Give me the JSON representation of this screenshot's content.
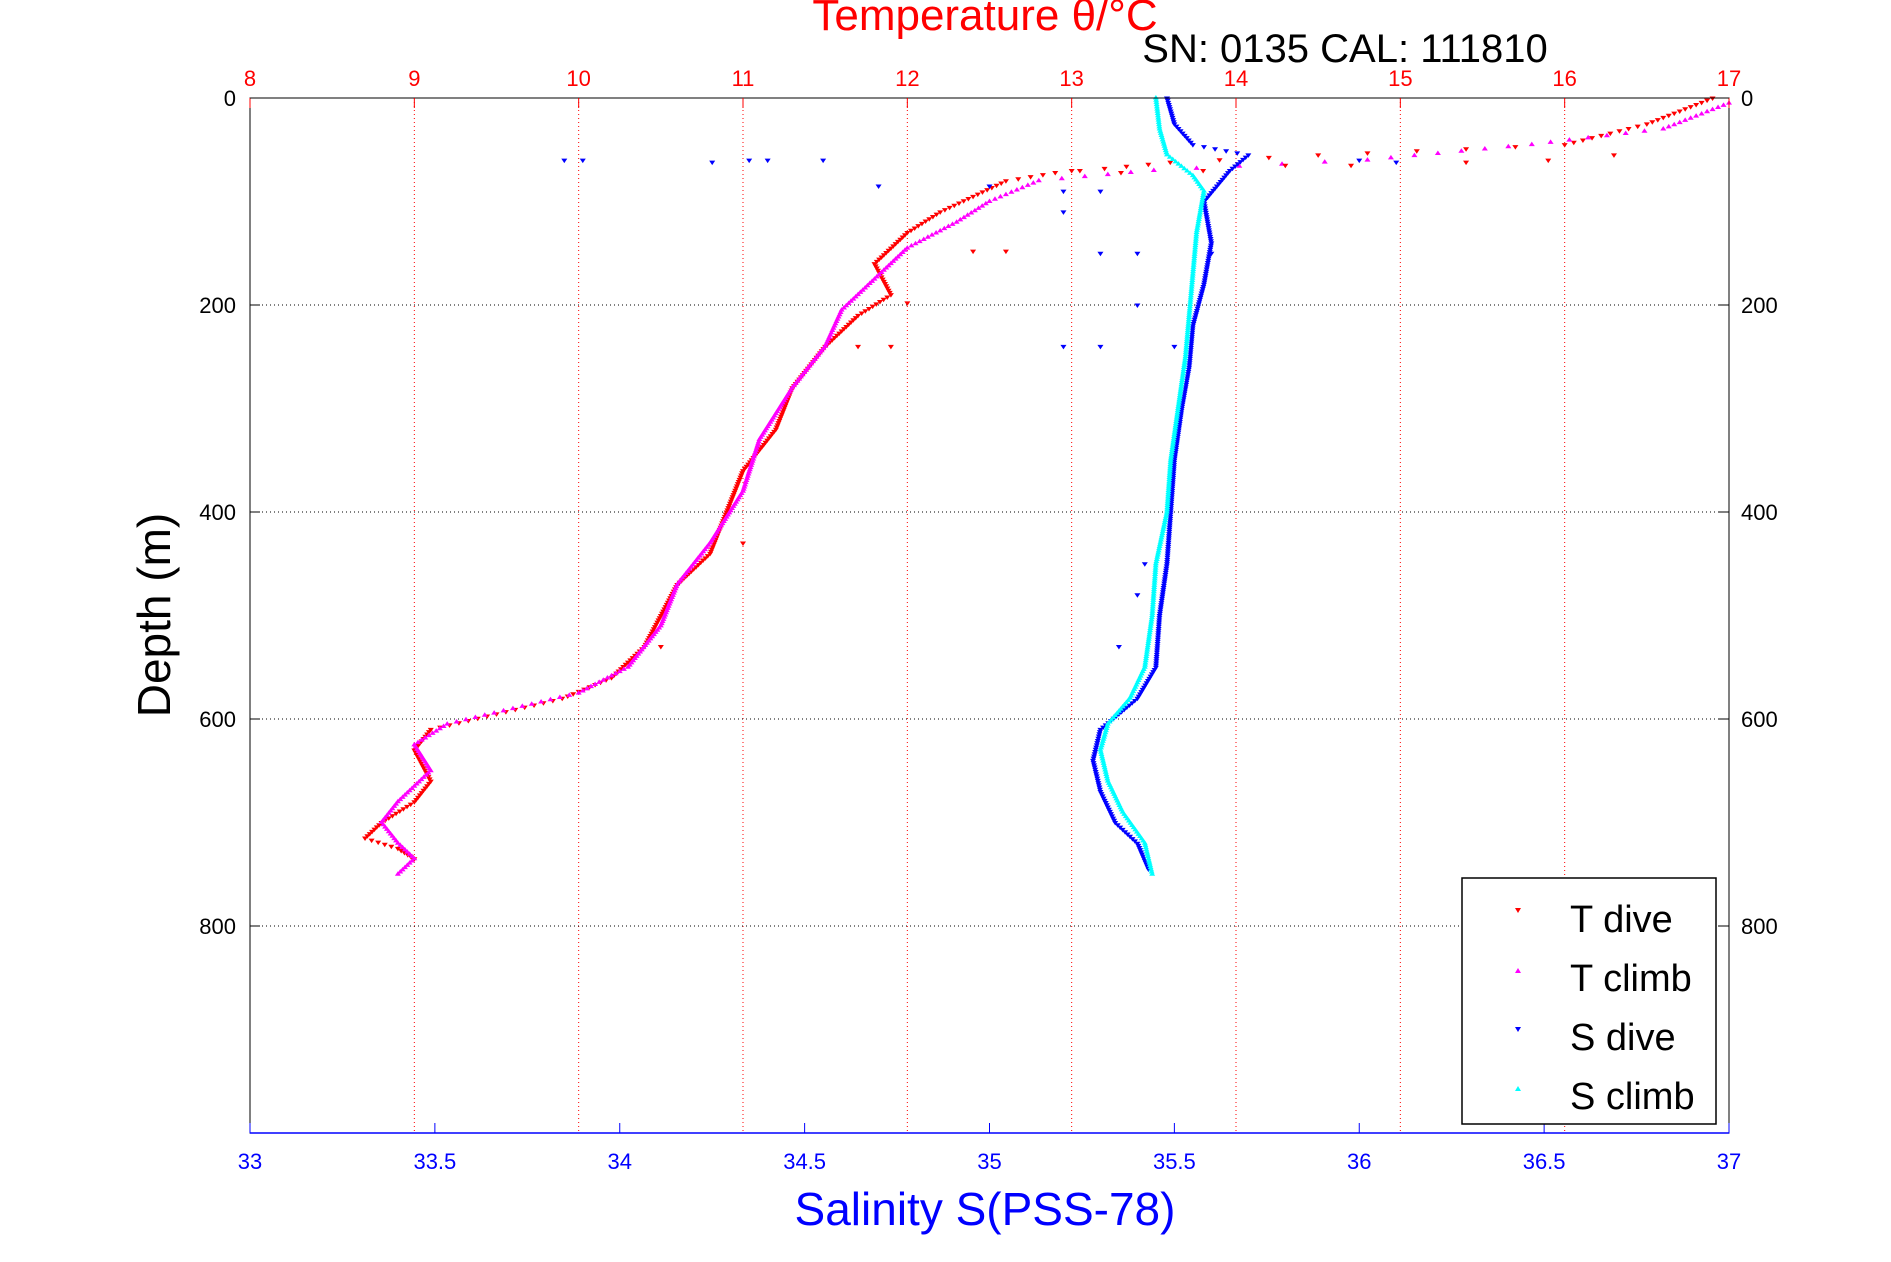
{
  "chart_data": {
    "type": "scatter",
    "title": "Temperature θ/°C",
    "subtitle": "SN: 0135  CAL: 111810",
    "ylabel": "Depth (m)",
    "xlabel": "Salinity S(PSS-78)",
    "y_axis": {
      "min": 0,
      "max": 1000,
      "inverted": true,
      "ticks": [
        0,
        200,
        400,
        600,
        800
      ],
      "tick_labels": [
        "0",
        "200",
        "400",
        "600",
        "800"
      ],
      "grid": true
    },
    "temperature_axis": {
      "position": "top",
      "min": 8,
      "max": 17,
      "ticks": [
        8,
        9,
        10,
        11,
        12,
        13,
        14,
        15,
        16,
        17
      ],
      "tick_labels": [
        "8",
        "9",
        "10",
        "11",
        "12",
        "13",
        "14",
        "15",
        "16",
        "17"
      ],
      "grid": true
    },
    "salinity_axis": {
      "position": "bottom",
      "min": 33,
      "max": 37,
      "ticks": [
        33,
        33.5,
        34,
        34.5,
        35,
        35.5,
        36,
        36.5,
        37
      ],
      "tick_labels": [
        "33",
        "33.5",
        "34",
        "34.5",
        "35",
        "35.5",
        "36",
        "36.5",
        "37"
      ]
    },
    "legend": {
      "placement": "bottom-right"
    },
    "colors": {
      "title": "#ff0000",
      "temperature_axis": "#ff0000",
      "salinity_axis": "#0000ff",
      "t_dive": "#ff0000",
      "t_climb": "#ff00ff",
      "s_dive": "#0000ff",
      "s_climb": "#00ffff"
    },
    "series": [
      {
        "name": "T dive",
        "axis": "temperature",
        "marker": "triangle-down",
        "points": [
          [
            16.9,
            0
          ],
          [
            16.5,
            25
          ],
          [
            16.0,
            45
          ],
          [
            14.5,
            55
          ],
          [
            13.6,
            62
          ],
          [
            13.2,
            68
          ],
          [
            12.9,
            72
          ],
          [
            12.6,
            80
          ],
          [
            12.4,
            95
          ],
          [
            12.2,
            110
          ],
          [
            12.0,
            130
          ],
          [
            11.8,
            160
          ],
          [
            11.9,
            190
          ],
          [
            11.7,
            210
          ],
          [
            11.5,
            240
          ],
          [
            11.3,
            280
          ],
          [
            11.2,
            320
          ],
          [
            11.0,
            360
          ],
          [
            10.9,
            400
          ],
          [
            10.8,
            440
          ],
          [
            10.6,
            470
          ],
          [
            10.5,
            500
          ],
          [
            10.4,
            530
          ],
          [
            10.2,
            560
          ],
          [
            9.9,
            580
          ],
          [
            9.5,
            595
          ],
          [
            9.1,
            610
          ],
          [
            9.0,
            630
          ],
          [
            9.1,
            660
          ],
          [
            9.0,
            680
          ],
          [
            8.8,
            700
          ],
          [
            8.7,
            715
          ],
          [
            8.9,
            725
          ],
          [
            9.0,
            735
          ]
        ]
      },
      {
        "name": "T climb",
        "axis": "temperature",
        "marker": "triangle-up",
        "points": [
          [
            17.0,
            5
          ],
          [
            16.6,
            30
          ],
          [
            15.8,
            45
          ],
          [
            14.8,
            60
          ],
          [
            13.5,
            70
          ],
          [
            12.8,
            80
          ],
          [
            12.5,
            100
          ],
          [
            12.3,
            120
          ],
          [
            12.0,
            145
          ],
          [
            11.8,
            175
          ],
          [
            11.6,
            205
          ],
          [
            11.5,
            240
          ],
          [
            11.3,
            280
          ],
          [
            11.1,
            330
          ],
          [
            11.0,
            380
          ],
          [
            10.8,
            430
          ],
          [
            10.6,
            470
          ],
          [
            10.5,
            510
          ],
          [
            10.3,
            550
          ],
          [
            10.0,
            575
          ],
          [
            9.6,
            590
          ],
          [
            9.2,
            605
          ],
          [
            9.0,
            625
          ],
          [
            9.1,
            650
          ],
          [
            8.9,
            680
          ],
          [
            8.8,
            700
          ],
          [
            8.9,
            720
          ],
          [
            9.0,
            735
          ],
          [
            8.9,
            750
          ]
        ]
      },
      {
        "name": "S dive",
        "axis": "salinity",
        "marker": "triangle-down",
        "points": [
          [
            35.48,
            0
          ],
          [
            35.5,
            25
          ],
          [
            35.55,
            45
          ],
          [
            35.7,
            55
          ],
          [
            35.65,
            70
          ],
          [
            35.58,
            100
          ],
          [
            35.6,
            140
          ],
          [
            35.58,
            180
          ],
          [
            35.55,
            220
          ],
          [
            35.54,
            260
          ],
          [
            35.52,
            300
          ],
          [
            35.5,
            350
          ],
          [
            35.49,
            400
          ],
          [
            35.48,
            450
          ],
          [
            35.46,
            500
          ],
          [
            35.45,
            550
          ],
          [
            35.4,
            580
          ],
          [
            35.3,
            610
          ],
          [
            35.28,
            640
          ],
          [
            35.3,
            670
          ],
          [
            35.34,
            700
          ],
          [
            35.4,
            720
          ],
          [
            35.43,
            745
          ]
        ]
      },
      {
        "name": "S climb",
        "axis": "salinity",
        "marker": "triangle-up",
        "points": [
          [
            35.45,
            0
          ],
          [
            35.46,
            30
          ],
          [
            35.48,
            55
          ],
          [
            35.55,
            75
          ],
          [
            35.58,
            90
          ],
          [
            35.56,
            130
          ],
          [
            35.55,
            170
          ],
          [
            35.54,
            210
          ],
          [
            35.53,
            250
          ],
          [
            35.51,
            300
          ],
          [
            35.49,
            350
          ],
          [
            35.48,
            400
          ],
          [
            35.45,
            450
          ],
          [
            35.44,
            500
          ],
          [
            35.42,
            550
          ],
          [
            35.38,
            580
          ],
          [
            35.32,
            605
          ],
          [
            35.3,
            630
          ],
          [
            35.32,
            660
          ],
          [
            35.36,
            690
          ],
          [
            35.42,
            720
          ],
          [
            35.44,
            750
          ]
        ]
      }
    ],
    "scattered_outliers": {
      "s_dive": [
        [
          33.85,
          60
        ],
        [
          33.9,
          60
        ],
        [
          34.25,
          62
        ],
        [
          34.35,
          60
        ],
        [
          34.4,
          60
        ],
        [
          34.55,
          60
        ],
        [
          34.7,
          85
        ],
        [
          35.2,
          110
        ],
        [
          35.3,
          150
        ],
        [
          35.4,
          150
        ],
        [
          35.6,
          150
        ],
        [
          35.4,
          200
        ],
        [
          35.2,
          240
        ],
        [
          35.3,
          240
        ],
        [
          35.5,
          240
        ],
        [
          35.0,
          85
        ],
        [
          35.2,
          90
        ],
        [
          35.3,
          90
        ],
        [
          36.0,
          60
        ],
        [
          36.1,
          62
        ],
        [
          35.35,
          530
        ],
        [
          35.42,
          450
        ],
        [
          35.4,
          480
        ]
      ],
      "t_dive": [
        [
          13.0,
          70
        ],
        [
          12.4,
          148
        ],
        [
          12.6,
          148
        ],
        [
          12.0,
          198
        ],
        [
          11.7,
          240
        ],
        [
          11.9,
          240
        ],
        [
          10.5,
          530
        ],
        [
          11.0,
          430
        ],
        [
          13.3,
          72
        ],
        [
          13.8,
          70
        ],
        [
          14.3,
          65
        ],
        [
          14.7,
          65
        ],
        [
          15.4,
          62
        ],
        [
          15.9,
          60
        ],
        [
          16.3,
          55
        ]
      ]
    }
  }
}
